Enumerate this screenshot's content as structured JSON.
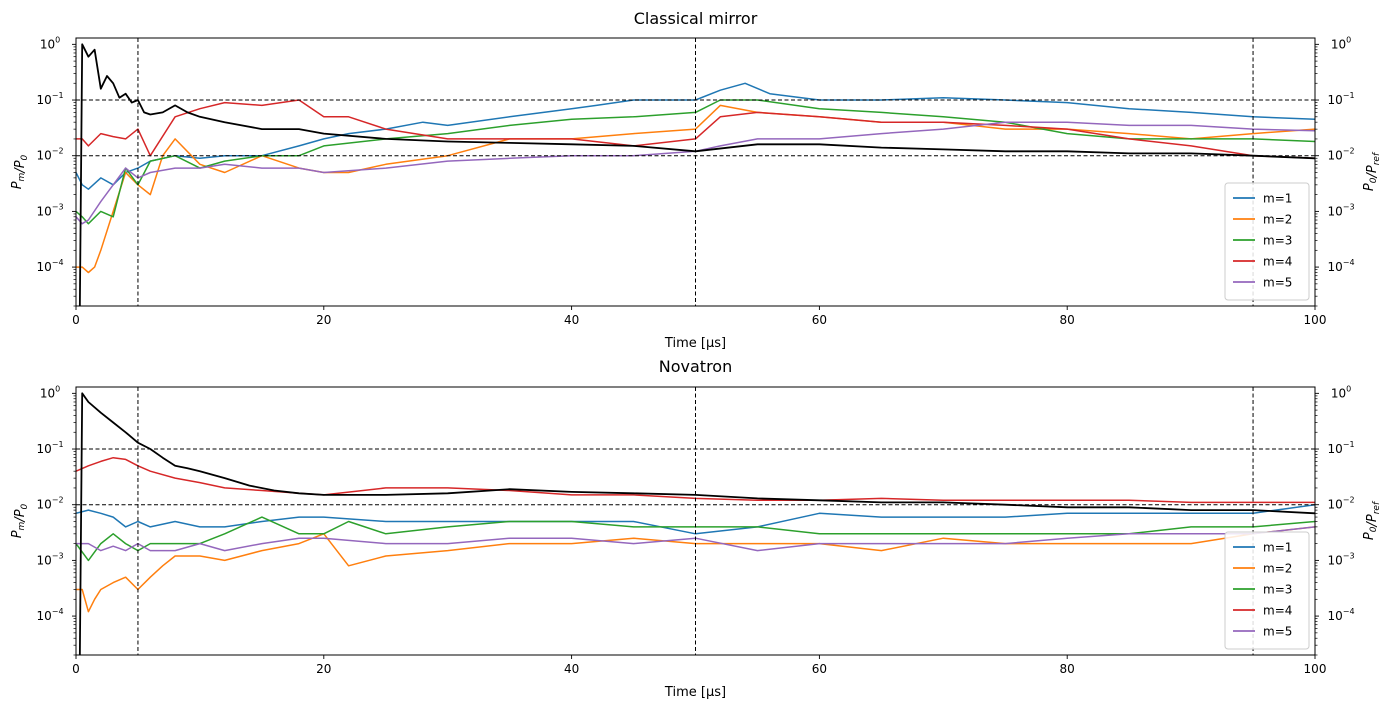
{
  "chart_data": [
    {
      "type": "line",
      "title": "Classical mirror",
      "xlabel": "Time [μs]",
      "ylabel": "P_m/P_0",
      "ylabel_right": "P_0/P_ref",
      "xlim": [
        0,
        100
      ],
      "ylim": [
        2e-05,
        1.3
      ],
      "yscale": "log",
      "xticks": [
        0,
        20,
        40,
        60,
        80,
        100
      ],
      "yticks": [
        0.0001,
        0.001,
        0.01,
        0.1,
        1
      ],
      "ytick_labels": [
        "10^-4",
        "10^-3",
        "10^-2",
        "10^-1",
        "10^0"
      ],
      "vlines": [
        5,
        50,
        95
      ],
      "hlines": [
        0.1,
        0.01
      ],
      "legend_position": "lower-right",
      "series": [
        {
          "name": "m=1",
          "color": "#1f77b4",
          "x": [
            0,
            0.5,
            1,
            2,
            3,
            4,
            5,
            6,
            8,
            10,
            12,
            15,
            18,
            20,
            22,
            25,
            28,
            30,
            35,
            40,
            42,
            45,
            48,
            50,
            52,
            54,
            56,
            60,
            65,
            70,
            75,
            80,
            85,
            90,
            95,
            100
          ],
          "y": [
            0.005,
            0.003,
            0.0025,
            0.004,
            0.003,
            0.005,
            0.006,
            0.008,
            0.01,
            0.009,
            0.01,
            0.01,
            0.015,
            0.02,
            0.025,
            0.03,
            0.04,
            0.035,
            0.05,
            0.07,
            0.08,
            0.1,
            0.1,
            0.1,
            0.15,
            0.2,
            0.13,
            0.1,
            0.1,
            0.11,
            0.1,
            0.09,
            0.07,
            0.06,
            0.05,
            0.045
          ]
        },
        {
          "name": "m=2",
          "color": "#ff7f0e",
          "x": [
            0,
            0.5,
            1,
            1.5,
            2,
            3,
            4,
            5,
            6,
            7,
            8,
            10,
            12,
            15,
            18,
            20,
            22,
            25,
            30,
            35,
            40,
            45,
            50,
            52,
            55,
            60,
            65,
            70,
            75,
            80,
            85,
            90,
            95,
            100
          ],
          "y": [
            0.0001,
            0.0001,
            8e-05,
            0.0001,
            0.0002,
            0.001,
            0.005,
            0.003,
            0.002,
            0.01,
            0.02,
            0.007,
            0.005,
            0.01,
            0.006,
            0.005,
            0.005,
            0.007,
            0.01,
            0.02,
            0.02,
            0.025,
            0.03,
            0.08,
            0.06,
            0.05,
            0.04,
            0.04,
            0.03,
            0.03,
            0.025,
            0.02,
            0.025,
            0.03
          ]
        },
        {
          "name": "m=3",
          "color": "#2ca02c",
          "x": [
            0,
            0.5,
            1,
            2,
            3,
            4,
            5,
            6,
            8,
            10,
            12,
            15,
            18,
            20,
            25,
            30,
            35,
            40,
            45,
            50,
            52,
            55,
            60,
            65,
            70,
            75,
            80,
            85,
            90,
            95,
            100
          ],
          "y": [
            0.001,
            0.0008,
            0.0006,
            0.001,
            0.0008,
            0.006,
            0.003,
            0.008,
            0.01,
            0.006,
            0.008,
            0.01,
            0.01,
            0.015,
            0.02,
            0.025,
            0.035,
            0.045,
            0.05,
            0.06,
            0.1,
            0.1,
            0.07,
            0.06,
            0.05,
            0.04,
            0.025,
            0.02,
            0.02,
            0.02,
            0.018
          ]
        },
        {
          "name": "m=4",
          "color": "#d62728",
          "x": [
            0,
            0.5,
            1,
            2,
            3,
            4,
            5,
            6,
            8,
            10,
            12,
            15,
            18,
            20,
            22,
            25,
            30,
            35,
            40,
            45,
            50,
            52,
            55,
            60,
            65,
            70,
            75,
            80,
            85,
            90,
            95,
            100
          ],
          "y": [
            0.02,
            0.02,
            0.015,
            0.025,
            0.022,
            0.02,
            0.03,
            0.01,
            0.05,
            0.07,
            0.09,
            0.08,
            0.1,
            0.05,
            0.05,
            0.03,
            0.02,
            0.02,
            0.02,
            0.015,
            0.02,
            0.05,
            0.06,
            0.05,
            0.04,
            0.04,
            0.035,
            0.03,
            0.02,
            0.015,
            0.01,
            0.009
          ]
        },
        {
          "name": "m=5",
          "color": "#9467bd",
          "x": [
            0,
            0.5,
            1,
            2,
            3,
            4,
            5,
            6,
            8,
            10,
            12,
            15,
            18,
            20,
            25,
            30,
            35,
            40,
            45,
            50,
            52,
            55,
            60,
            65,
            70,
            75,
            80,
            85,
            90,
            95,
            100
          ],
          "y": [
            0.0008,
            0.0006,
            0.0007,
            0.0015,
            0.003,
            0.006,
            0.004,
            0.005,
            0.006,
            0.006,
            0.007,
            0.006,
            0.006,
            0.005,
            0.006,
            0.008,
            0.009,
            0.01,
            0.01,
            0.012,
            0.015,
            0.02,
            0.02,
            0.025,
            0.03,
            0.04,
            0.04,
            0.035,
            0.035,
            0.03,
            0.028
          ]
        },
        {
          "name": "P0/Pref",
          "color": "#000000",
          "legend": false,
          "x": [
            0.3,
            0.5,
            1,
            1.5,
            2,
            2.5,
            3,
            3.5,
            4,
            4.5,
            5,
            5.5,
            6,
            7,
            8,
            9,
            10,
            12,
            15,
            18,
            20,
            25,
            30,
            35,
            40,
            45,
            50,
            55,
            60,
            65,
            70,
            75,
            80,
            85,
            90,
            95,
            100
          ],
          "y": [
            1e-05,
            1.0,
            0.6,
            0.8,
            0.16,
            0.27,
            0.2,
            0.11,
            0.13,
            0.09,
            0.1,
            0.06,
            0.055,
            0.06,
            0.08,
            0.06,
            0.05,
            0.04,
            0.03,
            0.03,
            0.025,
            0.02,
            0.018,
            0.017,
            0.016,
            0.015,
            0.012,
            0.016,
            0.016,
            0.014,
            0.013,
            0.012,
            0.012,
            0.011,
            0.011,
            0.01,
            0.009
          ]
        }
      ]
    },
    {
      "type": "line",
      "title": "Novatron",
      "xlabel": "Time [μs]",
      "ylabel": "P_m/P_0",
      "ylabel_right": "P_0/P_ref",
      "xlim": [
        0,
        100
      ],
      "ylim": [
        2e-05,
        1.3
      ],
      "yscale": "log",
      "xticks": [
        0,
        20,
        40,
        60,
        80,
        100
      ],
      "yticks": [
        0.0001,
        0.001,
        0.01,
        0.1,
        1
      ],
      "ytick_labels": [
        "10^-4",
        "10^-3",
        "10^-2",
        "10^-1",
        "10^0"
      ],
      "vlines": [
        5,
        50,
        95
      ],
      "hlines": [
        0.1,
        0.01
      ],
      "legend_position": "lower-right",
      "series": [
        {
          "name": "m=1",
          "color": "#1f77b4",
          "x": [
            0,
            1,
            2,
            3,
            4,
            5,
            6,
            8,
            10,
            12,
            15,
            18,
            20,
            25,
            30,
            35,
            40,
            45,
            50,
            55,
            60,
            65,
            70,
            75,
            80,
            85,
            90,
            95,
            100
          ],
          "y": [
            0.007,
            0.008,
            0.007,
            0.006,
            0.004,
            0.005,
            0.004,
            0.005,
            0.004,
            0.004,
            0.005,
            0.006,
            0.006,
            0.005,
            0.005,
            0.005,
            0.005,
            0.005,
            0.003,
            0.004,
            0.007,
            0.006,
            0.006,
            0.006,
            0.007,
            0.007,
            0.007,
            0.007,
            0.01
          ]
        },
        {
          "name": "m=2",
          "color": "#ff7f0e",
          "x": [
            0,
            0.5,
            1,
            1.5,
            2,
            3,
            4,
            5,
            6,
            7,
            8,
            10,
            12,
            15,
            18,
            20,
            22,
            25,
            30,
            35,
            40,
            45,
            50,
            55,
            60,
            65,
            70,
            75,
            80,
            85,
            90,
            95,
            100
          ],
          "y": [
            0.0003,
            0.0003,
            0.00012,
            0.0002,
            0.0003,
            0.0004,
            0.0005,
            0.0003,
            0.0005,
            0.0008,
            0.0012,
            0.0012,
            0.001,
            0.0015,
            0.002,
            0.003,
            0.0008,
            0.0012,
            0.0015,
            0.002,
            0.002,
            0.0025,
            0.002,
            0.002,
            0.002,
            0.0015,
            0.0025,
            0.002,
            0.002,
            0.002,
            0.002,
            0.003,
            0.004
          ]
        },
        {
          "name": "m=3",
          "color": "#2ca02c",
          "x": [
            0,
            1,
            2,
            3,
            4,
            5,
            6,
            8,
            10,
            12,
            15,
            18,
            20,
            22,
            25,
            30,
            35,
            40,
            45,
            50,
            55,
            60,
            65,
            70,
            75,
            80,
            85,
            90,
            95,
            100
          ],
          "y": [
            0.002,
            0.001,
            0.002,
            0.003,
            0.002,
            0.0015,
            0.002,
            0.002,
            0.002,
            0.003,
            0.006,
            0.003,
            0.003,
            0.005,
            0.003,
            0.004,
            0.005,
            0.005,
            0.004,
            0.004,
            0.004,
            0.003,
            0.003,
            0.003,
            0.003,
            0.003,
            0.003,
            0.004,
            0.004,
            0.005
          ]
        },
        {
          "name": "m=4",
          "color": "#d62728",
          "x": [
            0,
            1,
            2,
            3,
            4,
            5,
            6,
            8,
            10,
            12,
            15,
            18,
            20,
            25,
            30,
            35,
            40,
            45,
            50,
            55,
            60,
            65,
            70,
            75,
            80,
            85,
            90,
            95,
            100
          ],
          "y": [
            0.04,
            0.05,
            0.06,
            0.07,
            0.065,
            0.05,
            0.04,
            0.03,
            0.025,
            0.02,
            0.018,
            0.016,
            0.015,
            0.02,
            0.02,
            0.018,
            0.015,
            0.015,
            0.013,
            0.012,
            0.012,
            0.013,
            0.012,
            0.012,
            0.012,
            0.012,
            0.011,
            0.011,
            0.011
          ]
        },
        {
          "name": "m=5",
          "color": "#9467bd",
          "x": [
            0,
            1,
            2,
            3,
            4,
            5,
            6,
            8,
            10,
            12,
            15,
            18,
            20,
            25,
            30,
            35,
            40,
            45,
            50,
            55,
            60,
            65,
            70,
            75,
            80,
            85,
            90,
            95,
            100
          ],
          "y": [
            0.002,
            0.002,
            0.0015,
            0.0018,
            0.0015,
            0.002,
            0.0015,
            0.0015,
            0.002,
            0.0015,
            0.002,
            0.0025,
            0.0025,
            0.002,
            0.002,
            0.0025,
            0.0025,
            0.002,
            0.0025,
            0.0015,
            0.002,
            0.002,
            0.002,
            0.002,
            0.0025,
            0.003,
            0.003,
            0.003,
            0.004
          ]
        },
        {
          "name": "P0/Pref",
          "color": "#000000",
          "legend": false,
          "x": [
            0.3,
            0.5,
            1,
            2,
            3,
            4,
            5,
            6,
            7,
            8,
            9,
            10,
            12,
            14,
            16,
            18,
            20,
            25,
            30,
            35,
            40,
            45,
            50,
            55,
            60,
            65,
            70,
            75,
            80,
            85,
            90,
            95,
            100
          ],
          "y": [
            1e-05,
            1.0,
            0.7,
            0.45,
            0.3,
            0.2,
            0.13,
            0.1,
            0.07,
            0.05,
            0.045,
            0.04,
            0.03,
            0.022,
            0.018,
            0.016,
            0.015,
            0.015,
            0.016,
            0.019,
            0.017,
            0.016,
            0.015,
            0.013,
            0.012,
            0.011,
            0.011,
            0.01,
            0.009,
            0.009,
            0.008,
            0.008,
            0.007
          ]
        }
      ]
    }
  ]
}
